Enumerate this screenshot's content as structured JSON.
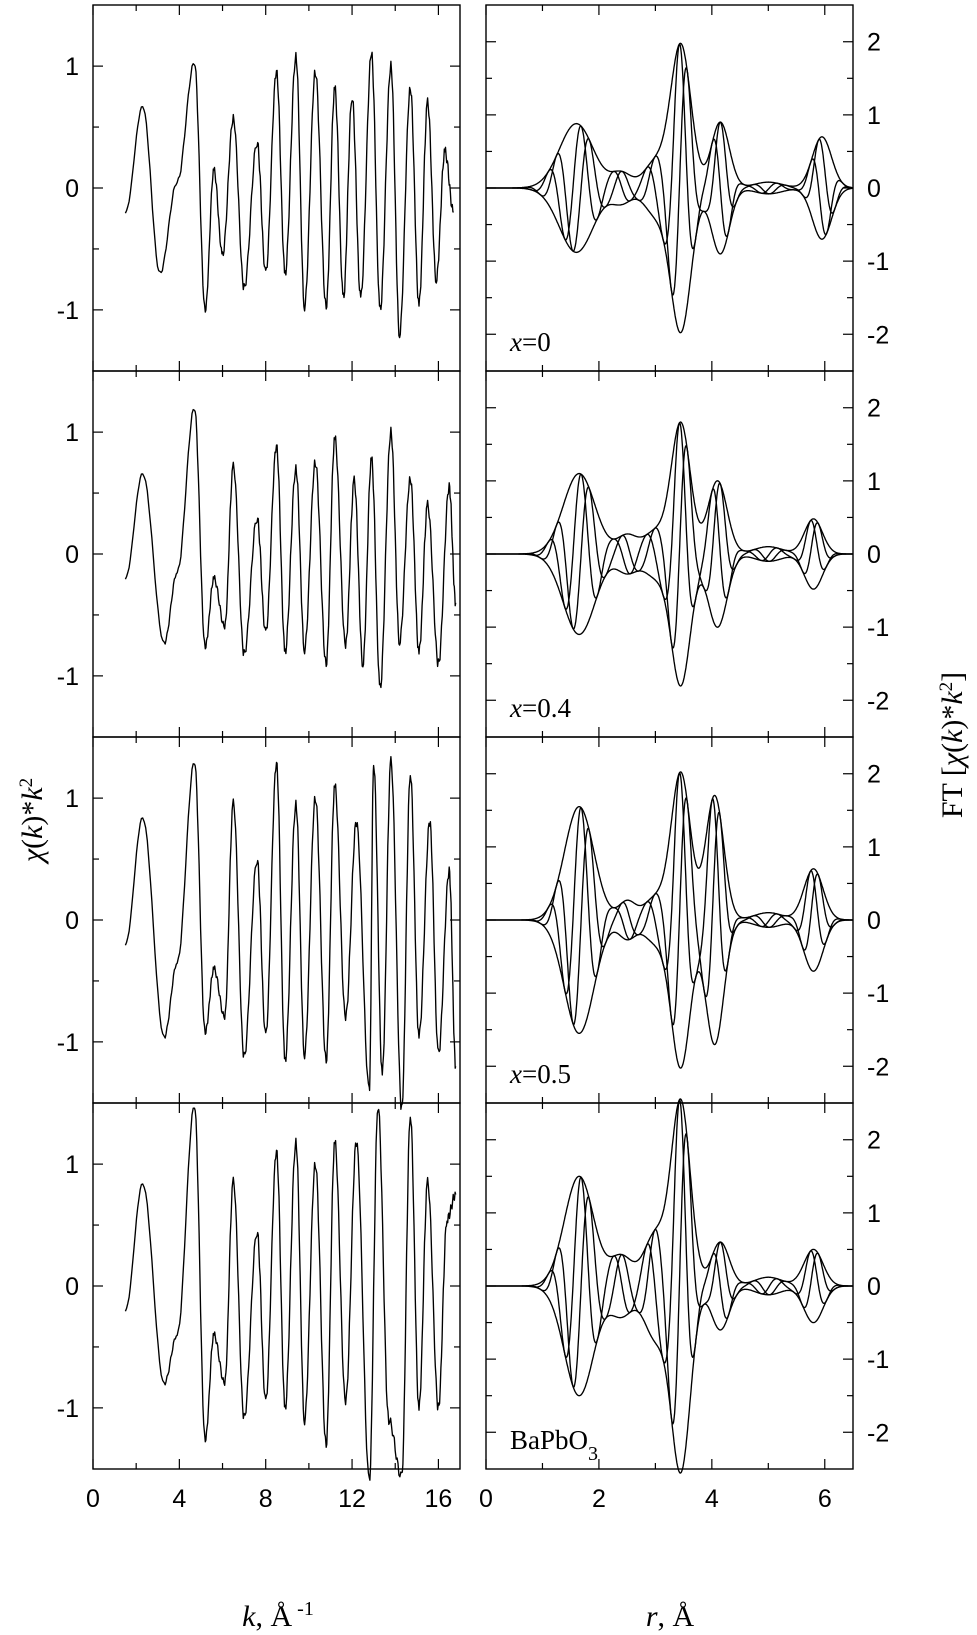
{
  "chart_data": [
    {
      "type": "line",
      "panel": "k-space",
      "xlabel": "k, Å-1",
      "ylabel": "χ(k)*k²",
      "xlim": [
        0,
        17
      ],
      "ylim": [
        -1.5,
        1.5
      ],
      "x_ticks": [
        "0",
        "4",
        "8",
        "12",
        "16"
      ],
      "y_ticks": [
        "-1",
        "0",
        "1"
      ],
      "k_range": [
        1.5,
        17
      ],
      "series": [
        {
          "label": "",
          "peaks": [
            [
              2.3,
              0.67
            ],
            [
              3.1,
              -0.7
            ],
            [
              3.9,
              0.05
            ],
            [
              4.7,
              1.03
            ],
            [
              5.2,
              -1.0
            ],
            [
              5.6,
              0.15
            ],
            [
              6.0,
              -0.55
            ],
            [
              6.5,
              0.57
            ],
            [
              7.0,
              -0.82
            ],
            [
              7.6,
              0.38
            ],
            [
              8.0,
              -0.7
            ],
            [
              8.5,
              0.95
            ],
            [
              8.9,
              -0.7
            ],
            [
              9.4,
              1.08
            ],
            [
              9.8,
              -0.97
            ],
            [
              10.3,
              0.95
            ],
            [
              10.8,
              -0.97
            ],
            [
              11.2,
              0.82
            ],
            [
              11.6,
              -0.9
            ],
            [
              12.0,
              0.75
            ],
            [
              12.4,
              -0.9
            ],
            [
              12.9,
              1.1
            ],
            [
              13.3,
              -1.0
            ],
            [
              13.8,
              1.0
            ],
            [
              14.2,
              -1.2
            ],
            [
              14.7,
              0.82
            ],
            [
              15.1,
              -0.95
            ],
            [
              15.5,
              0.7
            ],
            [
              15.9,
              -0.75
            ],
            [
              16.3,
              0.3
            ],
            [
              16.7,
              -0.2
            ]
          ]
        },
        {
          "label": "",
          "peaks": [
            [
              2.3,
              0.66
            ],
            [
              3.3,
              -0.73
            ],
            [
              3.9,
              -0.15
            ],
            [
              4.7,
              1.2
            ],
            [
              5.2,
              -0.76
            ],
            [
              5.6,
              -0.2
            ],
            [
              6.1,
              -0.6
            ],
            [
              6.5,
              0.72
            ],
            [
              7.0,
              -0.82
            ],
            [
              7.6,
              0.3
            ],
            [
              8.0,
              -0.65
            ],
            [
              8.5,
              0.88
            ],
            [
              8.9,
              -0.8
            ],
            [
              9.4,
              0.7
            ],
            [
              9.8,
              -0.78
            ],
            [
              10.3,
              0.75
            ],
            [
              10.8,
              -0.9
            ],
            [
              11.2,
              0.95
            ],
            [
              11.7,
              -0.75
            ],
            [
              12.1,
              0.6
            ],
            [
              12.5,
              -0.9
            ],
            [
              12.9,
              0.78
            ],
            [
              13.3,
              -1.1
            ],
            [
              13.8,
              1.0
            ],
            [
              14.2,
              -0.72
            ],
            [
              14.7,
              0.62
            ],
            [
              15.1,
              -0.8
            ],
            [
              15.5,
              0.4
            ],
            [
              16.0,
              -0.9
            ],
            [
              16.5,
              0.55
            ],
            [
              16.8,
              -0.4
            ]
          ]
        },
        {
          "label": "",
          "peaks": [
            [
              2.3,
              0.84
            ],
            [
              3.3,
              -0.96
            ],
            [
              3.9,
              -0.35
            ],
            [
              4.7,
              1.3
            ],
            [
              5.2,
              -0.92
            ],
            [
              5.6,
              -0.4
            ],
            [
              6.1,
              -0.8
            ],
            [
              6.5,
              0.96
            ],
            [
              7.0,
              -1.12
            ],
            [
              7.6,
              0.5
            ],
            [
              8.0,
              -0.95
            ],
            [
              8.5,
              1.28
            ],
            [
              8.9,
              -1.15
            ],
            [
              9.4,
              0.95
            ],
            [
              9.8,
              -1.1
            ],
            [
              10.3,
              1.0
            ],
            [
              10.8,
              -1.15
            ],
            [
              11.2,
              1.1
            ],
            [
              11.7,
              -0.8
            ],
            [
              12.2,
              0.8
            ],
            [
              12.8,
              -1.4
            ],
            [
              13.0,
              1.28
            ],
            [
              13.4,
              -1.25
            ],
            [
              13.8,
              1.3
            ],
            [
              14.3,
              -1.55
            ],
            [
              14.7,
              1.2
            ],
            [
              15.1,
              -0.95
            ],
            [
              15.6,
              0.8
            ],
            [
              16.0,
              -1.1
            ],
            [
              16.5,
              0.4
            ],
            [
              16.8,
              -1.2
            ]
          ]
        },
        {
          "label": "",
          "peaks": [
            [
              2.3,
              0.84
            ],
            [
              3.3,
              -0.8
            ],
            [
              3.9,
              -0.4
            ],
            [
              4.7,
              1.48
            ],
            [
              5.2,
              -1.26
            ],
            [
              5.6,
              -0.4
            ],
            [
              6.1,
              -0.8
            ],
            [
              6.5,
              0.86
            ],
            [
              7.0,
              -1.08
            ],
            [
              7.6,
              0.45
            ],
            [
              8.0,
              -0.95
            ],
            [
              8.5,
              1.1
            ],
            [
              8.9,
              -1.0
            ],
            [
              9.4,
              1.18
            ],
            [
              9.8,
              -1.1
            ],
            [
              10.3,
              1.0
            ],
            [
              10.8,
              -1.3
            ],
            [
              11.2,
              1.18
            ],
            [
              11.7,
              -0.95
            ],
            [
              12.2,
              1.18
            ],
            [
              12.8,
              -1.6
            ],
            [
              13.2,
              1.48
            ],
            [
              13.7,
              -1.1
            ],
            [
              14.3,
              -1.57
            ],
            [
              14.7,
              1.4
            ],
            [
              15.1,
              -1.0
            ],
            [
              15.5,
              0.85
            ],
            [
              16.0,
              -1.0
            ],
            [
              16.4,
              0.55
            ],
            [
              16.8,
              0.75
            ]
          ]
        }
      ]
    },
    {
      "type": "line",
      "panel": "r-space",
      "xlabel": "r, Å",
      "ylabel": "FT [χ(k)*k²]",
      "xlim": [
        0,
        6.5
      ],
      "ylim": [
        -2.5,
        2.5
      ],
      "x_ticks": [
        "0",
        "2",
        "4",
        "6"
      ],
      "y_ticks": [
        "-2",
        "-1",
        "0",
        "1",
        "2"
      ],
      "series": [
        {
          "label": "x=0",
          "peaks": [
            [
              1.6,
              0.88,
              0.3
            ],
            [
              2.4,
              0.2,
              0.18
            ],
            [
              3.0,
              0.35,
              0.2
            ],
            [
              3.45,
              1.95,
              0.18
            ],
            [
              4.15,
              0.9,
              0.16
            ],
            [
              5.0,
              0.08,
              0.25
            ],
            [
              5.95,
              0.7,
              0.17
            ]
          ]
        },
        {
          "label": "x=0.4",
          "peaks": [
            [
              1.65,
              1.1,
              0.28
            ],
            [
              2.5,
              0.25,
              0.18
            ],
            [
              3.0,
              0.3,
              0.2
            ],
            [
              3.45,
              1.78,
              0.17
            ],
            [
              4.1,
              1.0,
              0.17
            ],
            [
              5.0,
              0.1,
              0.25
            ],
            [
              5.8,
              0.48,
              0.16
            ]
          ]
        },
        {
          "label": "x=0.5",
          "peaks": [
            [
              1.65,
              1.55,
              0.26
            ],
            [
              2.5,
              0.25,
              0.15
            ],
            [
              3.0,
              0.3,
              0.2
            ],
            [
              3.45,
              2.0,
              0.17
            ],
            [
              4.05,
              1.7,
              0.16
            ],
            [
              5.0,
              0.1,
              0.25
            ],
            [
              5.8,
              0.7,
              0.17
            ]
          ]
        },
        {
          "label": "BaPbO3",
          "peaks": [
            [
              1.65,
              1.5,
              0.26
            ],
            [
              2.4,
              0.4,
              0.2
            ],
            [
              3.0,
              0.7,
              0.2
            ],
            [
              3.45,
              2.5,
              0.17
            ],
            [
              4.15,
              0.6,
              0.16
            ],
            [
              5.0,
              0.12,
              0.25
            ],
            [
              5.8,
              0.5,
              0.17
            ]
          ]
        }
      ]
    }
  ]
}
